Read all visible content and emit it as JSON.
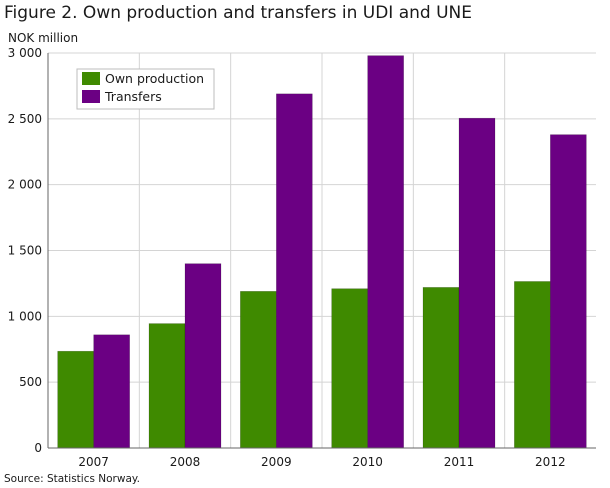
{
  "figure": {
    "title": "Figure 2. Own production and transfers in UDI and UNE",
    "unit_label": "NOK million",
    "source": "Source: Statistics Norway."
  },
  "colors": {
    "own_production": "#3f8a00",
    "transfers": "#6b0083",
    "grid": "#d4d4d4",
    "axis": "#666666"
  },
  "chart_data": {
    "type": "bar",
    "categories": [
      "2007",
      "2008",
      "2009",
      "2010",
      "2011",
      "2012"
    ],
    "series": [
      {
        "name": "Own production",
        "values": [
          735,
          945,
          1190,
          1210,
          1220,
          1265
        ]
      },
      {
        "name": "Transfers",
        "values": [
          860,
          1400,
          2690,
          2980,
          2505,
          2380
        ]
      }
    ],
    "ylim": [
      0,
      3000
    ],
    "yticks": [
      0,
      500,
      1000,
      1500,
      2000,
      2500,
      3000
    ],
    "ytick_labels": [
      "0",
      "500",
      "1 000",
      "1 500",
      "2 000",
      "2 500",
      "3 000"
    ],
    "grid": true,
    "legend_position": "top-left"
  }
}
